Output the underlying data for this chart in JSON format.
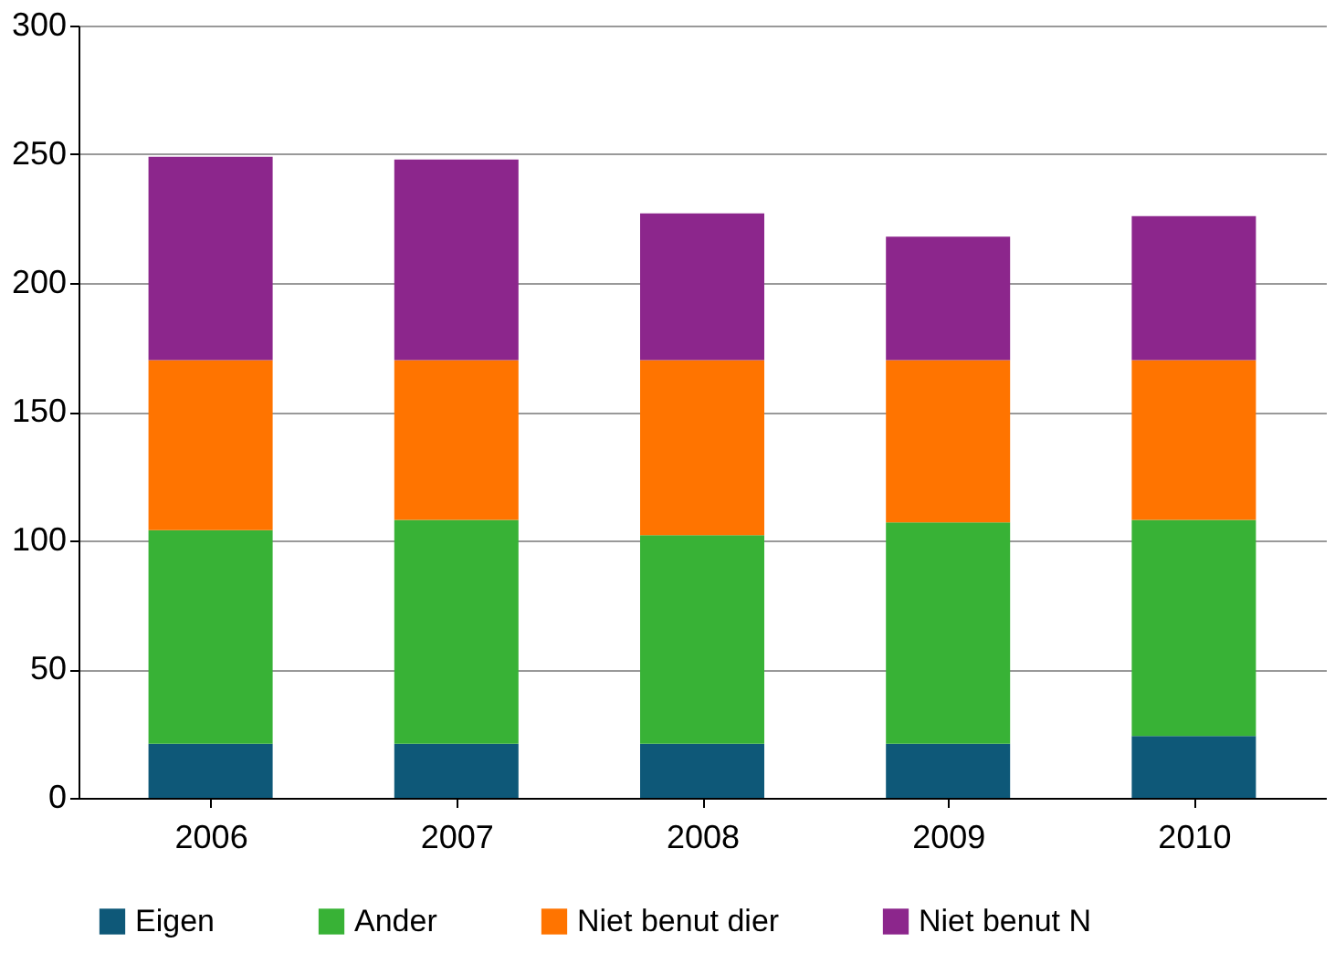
{
  "chart_data": {
    "type": "bar",
    "stacked": true,
    "categories": [
      "2006",
      "2007",
      "2008",
      "2009",
      "2010"
    ],
    "series": [
      {
        "name": "Eigen",
        "color": "#0e5878",
        "values": [
          21,
          21,
          21,
          21,
          24
        ]
      },
      {
        "name": "Ander",
        "color": "#38b236",
        "values": [
          83,
          87,
          81,
          86,
          84
        ]
      },
      {
        "name": "Niet benut dier",
        "color": "#ff7400",
        "values": [
          66,
          62,
          68,
          63,
          62
        ]
      },
      {
        "name": "Niet benut N",
        "color": "#8c268c",
        "values": [
          79,
          78,
          57,
          48,
          56
        ]
      }
    ],
    "ylim": [
      0,
      300
    ],
    "yticks": [
      0,
      50,
      100,
      150,
      200,
      250,
      300
    ],
    "grid": "y",
    "legend": "bottom"
  }
}
